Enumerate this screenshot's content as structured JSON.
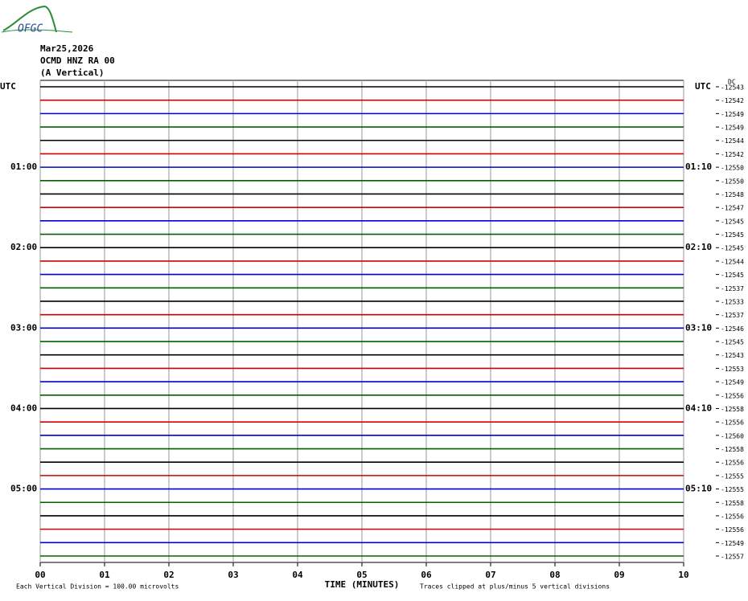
{
  "logo": "OFGC",
  "chart_data": {
    "type": "helicorder",
    "header": [
      "Mar25,2026",
      "OCMD HNZ RA 00",
      "(A Vertical)"
    ],
    "x_label": "TIME (MINUTES)",
    "scale_note": "Each Vertical Division =  100.00 microvolts",
    "clip_note": "Traces clipped at plus/minus 5 vertical divisions",
    "dc_label": "DC",
    "xlim": [
      0,
      10
    ],
    "xticks": [
      {
        "value": 0,
        "label": "00"
      },
      {
        "value": 1,
        "label": "01"
      },
      {
        "value": 2,
        "label": "02"
      },
      {
        "value": 3,
        "label": "03"
      },
      {
        "value": 4,
        "label": "04"
      },
      {
        "value": 5,
        "label": "05"
      },
      {
        "value": 6,
        "label": "06"
      },
      {
        "value": 7,
        "label": "07"
      },
      {
        "value": 8,
        "label": "08"
      },
      {
        "value": 9,
        "label": "09"
      },
      {
        "value": 10,
        "label": "10"
      }
    ],
    "grid": true,
    "trace_colors": [
      "#000000",
      "#d00000",
      "#0000d0",
      "#006000"
    ],
    "left_labels": [
      "UTC",
      null,
      null,
      null,
      null,
      null,
      "01:00",
      null,
      null,
      null,
      null,
      null,
      "02:00",
      null,
      null,
      null,
      null,
      null,
      "03:00",
      null,
      null,
      null,
      null,
      null,
      "04:00",
      null,
      null,
      null,
      null,
      null,
      "05:00",
      null,
      null,
      null,
      null,
      null
    ],
    "right_labels": [
      "UTC",
      null,
      null,
      null,
      null,
      null,
      "01:10",
      null,
      null,
      null,
      null,
      null,
      "02:10",
      null,
      null,
      null,
      null,
      null,
      "03:10",
      null,
      null,
      null,
      null,
      null,
      "04:10",
      null,
      null,
      null,
      null,
      null,
      "05:10",
      null,
      null,
      null,
      null,
      null
    ],
    "offsets": [
      -12543,
      -12542,
      -12549,
      -12549,
      -12544,
      -12542,
      -12550,
      -12550,
      -12548,
      -12547,
      -12545,
      -12545,
      -12545,
      -12544,
      -12545,
      -12537,
      -12533,
      -12537,
      -12546,
      -12545,
      -12543,
      -12553,
      -12549,
      -12556,
      -12558,
      -12556,
      -12560,
      -12558,
      -12556,
      -12555,
      -12555,
      -12558,
      -12556,
      -12556,
      -12549,
      -12557
    ]
  }
}
